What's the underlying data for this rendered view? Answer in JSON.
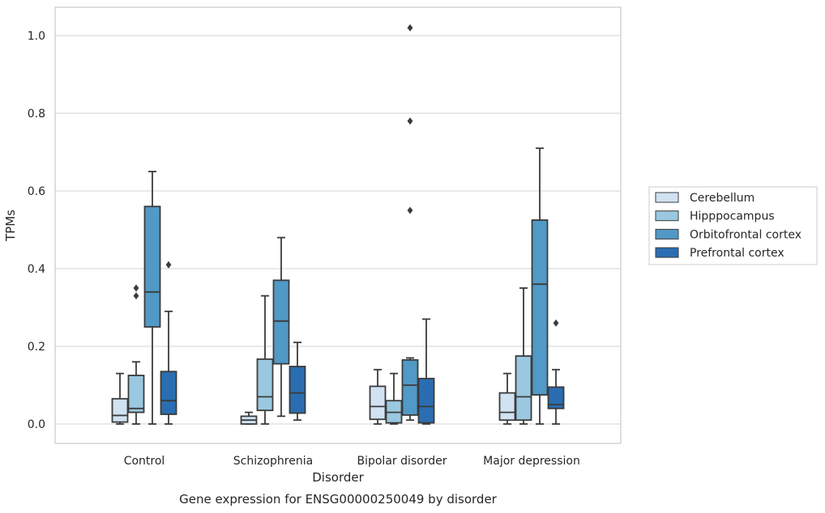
{
  "chart_data": {
    "type": "box",
    "title": "",
    "caption": "Gene expression for ENSG00000250049 by disorder",
    "xlabel": "Disorder",
    "ylabel": "TPMs",
    "ylim": [
      -0.05,
      1.07
    ],
    "yticks": [
      0.0,
      0.2,
      0.4,
      0.6,
      0.8,
      1.0
    ],
    "ytick_labels": [
      "0.0",
      "0.2",
      "0.4",
      "0.6",
      "0.8",
      "1.0"
    ],
    "grid": "horizontal",
    "legend_position": "right",
    "categories": [
      "Control",
      "Schizophrenia",
      "Bipolar disorder",
      "Major depression"
    ],
    "series": [
      {
        "name": "Cerebellum",
        "color": "#d1e2f2",
        "boxes": [
          {
            "whisker_low": 0.0,
            "q1": 0.005,
            "median": 0.022,
            "q3": 0.065,
            "whisker_high": 0.13,
            "outliers": []
          },
          {
            "whisker_low": 0.0,
            "q1": 0.0,
            "median": 0.01,
            "q3": 0.02,
            "whisker_high": 0.03,
            "outliers": []
          },
          {
            "whisker_low": 0.0,
            "q1": 0.012,
            "median": 0.045,
            "q3": 0.097,
            "whisker_high": 0.14,
            "outliers": []
          },
          {
            "whisker_low": 0.0,
            "q1": 0.01,
            "median": 0.03,
            "q3": 0.08,
            "whisker_high": 0.13,
            "outliers": []
          }
        ]
      },
      {
        "name": "Hipppocampus",
        "color": "#9ac8e0",
        "boxes": [
          {
            "whisker_low": 0.0,
            "q1": 0.03,
            "median": 0.04,
            "q3": 0.125,
            "whisker_high": 0.16,
            "outliers": [
              0.33,
              0.35
            ]
          },
          {
            "whisker_low": 0.0,
            "q1": 0.035,
            "median": 0.07,
            "q3": 0.167,
            "whisker_high": 0.33,
            "outliers": []
          },
          {
            "whisker_low": 0.0,
            "q1": 0.003,
            "median": 0.03,
            "q3": 0.06,
            "whisker_high": 0.13,
            "outliers": []
          },
          {
            "whisker_low": 0.0,
            "q1": 0.01,
            "median": 0.07,
            "q3": 0.175,
            "whisker_high": 0.35,
            "outliers": []
          }
        ]
      },
      {
        "name": "Orbitofrontal cortex",
        "color": "#5199c6",
        "boxes": [
          {
            "whisker_low": 0.0,
            "q1": 0.25,
            "median": 0.34,
            "q3": 0.56,
            "whisker_high": 0.65,
            "outliers": []
          },
          {
            "whisker_low": 0.02,
            "q1": 0.155,
            "median": 0.265,
            "q3": 0.37,
            "whisker_high": 0.48,
            "outliers": []
          },
          {
            "whisker_low": 0.01,
            "q1": 0.023,
            "median": 0.1,
            "q3": 0.165,
            "whisker_high": 0.17,
            "outliers": [
              0.55,
              0.78,
              1.02
            ]
          },
          {
            "whisker_low": 0.0,
            "q1": 0.075,
            "median": 0.36,
            "q3": 0.525,
            "whisker_high": 0.71,
            "outliers": []
          }
        ]
      },
      {
        "name": "Prefrontal cortex",
        "color": "#2a6eb1",
        "boxes": [
          {
            "whisker_low": 0.0,
            "q1": 0.025,
            "median": 0.06,
            "q3": 0.135,
            "whisker_high": 0.29,
            "outliers": [
              0.41
            ]
          },
          {
            "whisker_low": 0.01,
            "q1": 0.028,
            "median": 0.08,
            "q3": 0.148,
            "whisker_high": 0.21,
            "outliers": []
          },
          {
            "whisker_low": 0.0,
            "q1": 0.003,
            "median": 0.045,
            "q3": 0.117,
            "whisker_high": 0.27,
            "outliers": []
          },
          {
            "whisker_low": 0.0,
            "q1": 0.04,
            "median": 0.05,
            "q3": 0.095,
            "whisker_high": 0.14,
            "outliers": [
              0.26
            ]
          }
        ]
      }
    ]
  }
}
